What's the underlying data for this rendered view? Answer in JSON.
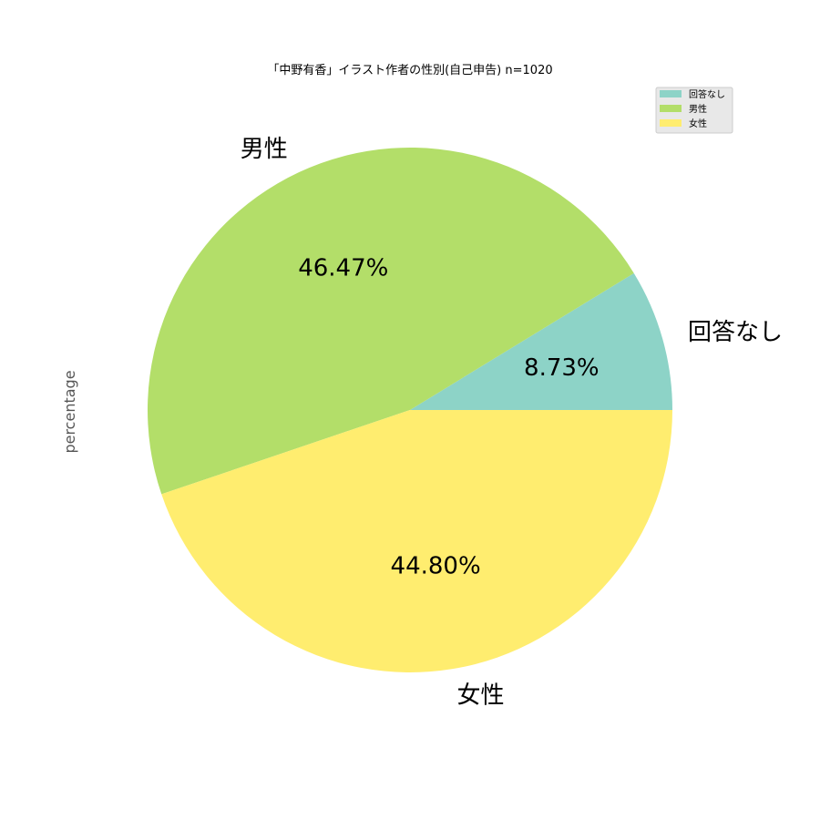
{
  "chart_data": {
    "type": "pie",
    "title": "「中野有香」イラスト作者の性別(自己申告) n=1020",
    "ylabel": "percentage",
    "categories": [
      "回答なし",
      "男性",
      "女性"
    ],
    "values": [
      8.73,
      46.47,
      44.8
    ],
    "value_labels": [
      "8.73%",
      "46.47%",
      "44.80%"
    ],
    "colors": [
      "#8dd3c7",
      "#b3de69",
      "#ffed6f"
    ],
    "start_angle_deg": 0,
    "direction": "counterclockwise",
    "legend": "top-right"
  }
}
